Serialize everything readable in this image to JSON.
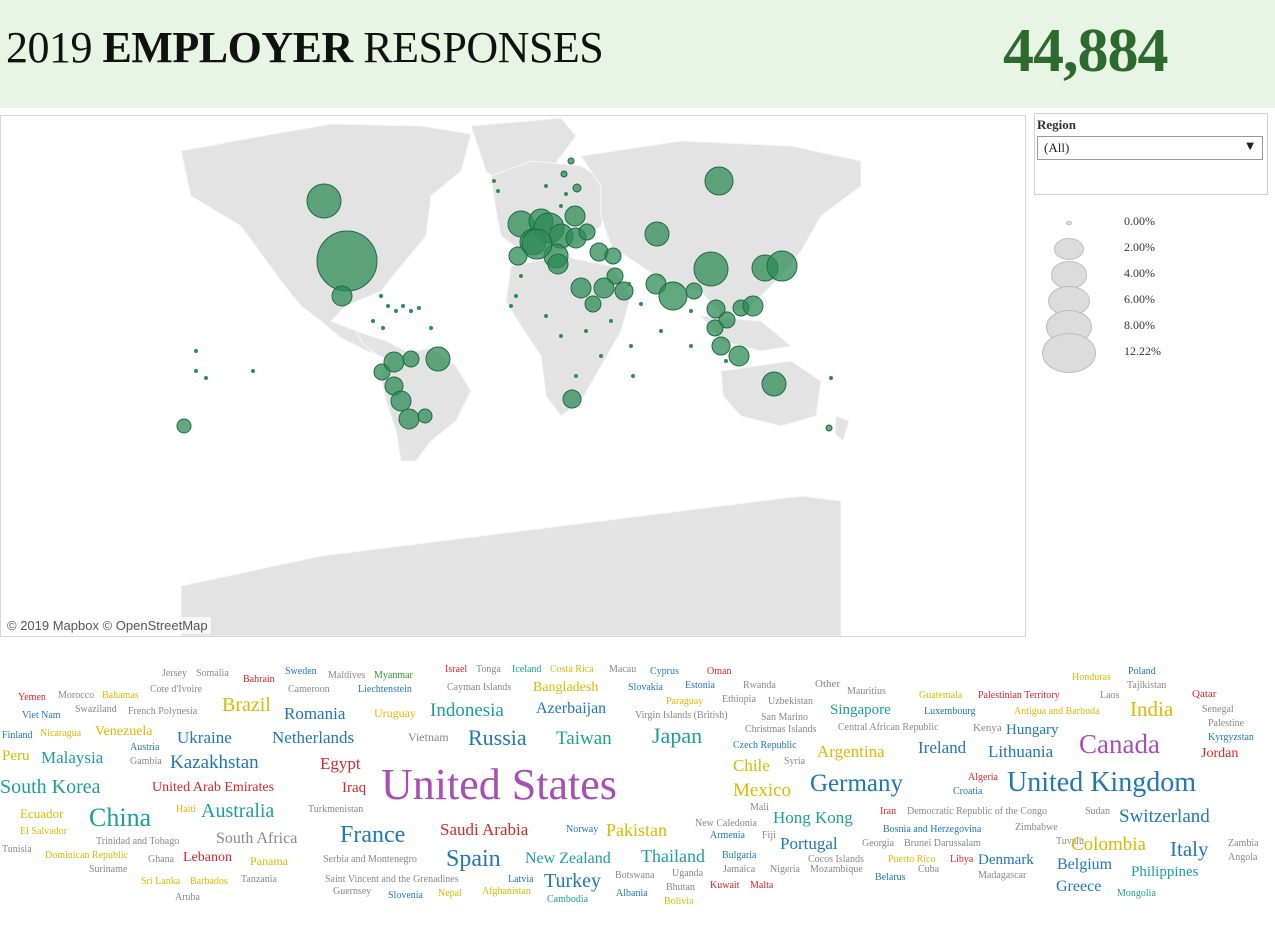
{
  "header": {
    "title_year": "2019",
    "title_bold": "EMPLOYER",
    "title_rest": "RESPONSES",
    "total_responses": "44,884"
  },
  "map": {
    "attribution": "© 2019 Mapbox © OpenStreetMap",
    "marker_color": "#2e8b57",
    "land_color": "#e2e2e2",
    "water_color": "#ffffff"
  },
  "region_filter": {
    "label": "Region",
    "selected": "(All)",
    "arrow_icon": "chevron-down-icon"
  },
  "size_legend": {
    "items": [
      {
        "label": "0.00%",
        "share": 0.0
      },
      {
        "label": "2.00%",
        "share": 2.0
      },
      {
        "label": "4.00%",
        "share": 4.0
      },
      {
        "label": "6.00%",
        "share": 6.0
      },
      {
        "label": "8.00%",
        "share": 8.0
      },
      {
        "label": "12.22%",
        "share": 12.22
      }
    ]
  },
  "colors": {
    "teal": "#1b9e9e",
    "blue": "#1f77b4",
    "green": "#2ca02c",
    "purple": "#a84fb5",
    "red": "#d62728",
    "gold": "#e0b800",
    "gray": "#888888",
    "darkteal": "#0f8a7a"
  },
  "word_cloud": [
    {
      "t": "Jersey",
      "c": "gray"
    },
    {
      "t": "Somalia",
      "c": "gray"
    },
    {
      "t": "Bahrain",
      "c": "red"
    },
    {
      "t": "Sweden",
      "c": "blue"
    },
    {
      "t": "Maldives",
      "c": "gray"
    },
    {
      "t": "Myanmar",
      "c": "green"
    },
    {
      "t": "Israel",
      "c": "red"
    },
    {
      "t": "Tonga",
      "c": "gray"
    },
    {
      "t": "Iceland",
      "c": "teal"
    },
    {
      "t": "Costa Rica",
      "c": "gold"
    },
    {
      "t": "Macau",
      "c": "gray"
    },
    {
      "t": "Cyprus",
      "c": "blue"
    },
    {
      "t": "Oman",
      "c": "red"
    },
    {
      "t": "Honduras",
      "c": "gold"
    },
    {
      "t": "Poland",
      "c": "blue"
    },
    {
      "t": "Tajikistan",
      "c": "gray"
    },
    {
      "t": "Yemen",
      "c": "red"
    },
    {
      "t": "Morocco",
      "c": "gray"
    },
    {
      "t": "Bahamas",
      "c": "gold"
    },
    {
      "t": "Cote d'Ivoire",
      "c": "gray"
    },
    {
      "t": "Cameroon",
      "c": "gray"
    },
    {
      "t": "Liechtenstein",
      "c": "blue"
    },
    {
      "t": "Cayman Islands",
      "c": "gray"
    },
    {
      "t": "Bangladesh",
      "c": "gold"
    },
    {
      "t": "Slovakia",
      "c": "blue"
    },
    {
      "t": "Estonia",
      "c": "blue"
    },
    {
      "t": "Rwanda",
      "c": "gray"
    },
    {
      "t": "Other",
      "c": "gray"
    },
    {
      "t": "Mauritius",
      "c": "gray"
    },
    {
      "t": "Guatemala",
      "c": "gold"
    },
    {
      "t": "Palestinian Territory",
      "c": "red"
    },
    {
      "t": "Laos",
      "c": "gray"
    },
    {
      "t": "Qatar",
      "c": "red"
    },
    {
      "t": "Viet Nam",
      "c": "blue"
    },
    {
      "t": "Swaziland",
      "c": "gray"
    },
    {
      "t": "French Polynesia",
      "c": "gray"
    },
    {
      "t": "Brazil",
      "c": "gold"
    },
    {
      "t": "Romania",
      "c": "blue"
    },
    {
      "t": "Uruguay",
      "c": "gold"
    },
    {
      "t": "Indonesia",
      "c": "teal"
    },
    {
      "t": "Azerbaijan",
      "c": "blue"
    },
    {
      "t": "Paraguay",
      "c": "gold"
    },
    {
      "t": "Ethiopia",
      "c": "gray"
    },
    {
      "t": "Uzbekistan",
      "c": "gray"
    },
    {
      "t": "Virgin Islands (British)",
      "c": "gray"
    },
    {
      "t": "San Marino",
      "c": "gray"
    },
    {
      "t": "Singapore",
      "c": "teal"
    },
    {
      "t": "Luxembourg",
      "c": "blue"
    },
    {
      "t": "Antigua and Barbuda",
      "c": "gold"
    },
    {
      "t": "India",
      "c": "gold"
    },
    {
      "t": "Senegal",
      "c": "gray"
    },
    {
      "t": "Finland",
      "c": "blue"
    },
    {
      "t": "Nicaragua",
      "c": "gold"
    },
    {
      "t": "Venezuela",
      "c": "gold"
    },
    {
      "t": "Austria",
      "c": "blue"
    },
    {
      "t": "Ukraine",
      "c": "blue"
    },
    {
      "t": "Netherlands",
      "c": "blue"
    },
    {
      "t": "Vietnam",
      "c": "gray"
    },
    {
      "t": "Russia",
      "c": "blue"
    },
    {
      "t": "Taiwan",
      "c": "teal"
    },
    {
      "t": "Japan",
      "c": "teal"
    },
    {
      "t": "Christmas Islands",
      "c": "gray"
    },
    {
      "t": "Central African Republic",
      "c": "gray"
    },
    {
      "t": "Kenya",
      "c": "gray"
    },
    {
      "t": "Hungary",
      "c": "blue"
    },
    {
      "t": "Palestine",
      "c": "gray"
    },
    {
      "t": "Kyrgyzstan",
      "c": "blue"
    },
    {
      "t": "Peru",
      "c": "gold"
    },
    {
      "t": "Malaysia",
      "c": "teal"
    },
    {
      "t": "Gambia",
      "c": "gray"
    },
    {
      "t": "Kazakhstan",
      "c": "blue"
    },
    {
      "t": "Egypt",
      "c": "red"
    },
    {
      "t": "Czech Republic",
      "c": "blue"
    },
    {
      "t": "Argentina",
      "c": "gold"
    },
    {
      "t": "Ireland",
      "c": "blue"
    },
    {
      "t": "Lithuania",
      "c": "blue"
    },
    {
      "t": "Canada",
      "c": "purple"
    },
    {
      "t": "Jordan",
      "c": "red"
    },
    {
      "t": "Chile",
      "c": "gold"
    },
    {
      "t": "Syria",
      "c": "gray"
    },
    {
      "t": "South Korea",
      "c": "teal"
    },
    {
      "t": "United Arab Emirates",
      "c": "red"
    },
    {
      "t": "Iraq",
      "c": "red"
    },
    {
      "t": "United States",
      "c": "purple"
    },
    {
      "t": "Mexico",
      "c": "gold"
    },
    {
      "t": "Germany",
      "c": "blue"
    },
    {
      "t": "Algeria",
      "c": "red"
    },
    {
      "t": "Croatia",
      "c": "blue"
    },
    {
      "t": "United Kingdom",
      "c": "blue"
    },
    {
      "t": "Ecuador",
      "c": "gold"
    },
    {
      "t": "Haiti",
      "c": "gold"
    },
    {
      "t": "China",
      "c": "teal"
    },
    {
      "t": "Australia",
      "c": "teal"
    },
    {
      "t": "Turkmenistan",
      "c": "gray"
    },
    {
      "t": "Mali",
      "c": "gray"
    },
    {
      "t": "Hong Kong",
      "c": "teal"
    },
    {
      "t": "Iran",
      "c": "red"
    },
    {
      "t": "Democratic Republic of the Congo",
      "c": "gray"
    },
    {
      "t": "Sudan",
      "c": "gray"
    },
    {
      "t": "Switzerland",
      "c": "blue"
    },
    {
      "t": "El Salvador",
      "c": "gold"
    },
    {
      "t": "Trinidad and Tobago",
      "c": "gray"
    },
    {
      "t": "South Africa",
      "c": "gray"
    },
    {
      "t": "France",
      "c": "blue"
    },
    {
      "t": "Saudi Arabia",
      "c": "red"
    },
    {
      "t": "Norway",
      "c": "blue"
    },
    {
      "t": "Pakistan",
      "c": "gold"
    },
    {
      "t": "New Caledonia",
      "c": "gray"
    },
    {
      "t": "Armenia",
      "c": "blue"
    },
    {
      "t": "Fiji",
      "c": "gray"
    },
    {
      "t": "Portugal",
      "c": "blue"
    },
    {
      "t": "Bosnia and Herzegovina",
      "c": "blue"
    },
    {
      "t": "Zimbabwe",
      "c": "gray"
    },
    {
      "t": "Georgia",
      "c": "gray"
    },
    {
      "t": "Brunei Darussalam",
      "c": "gray"
    },
    {
      "t": "Tuvalu",
      "c": "gray"
    },
    {
      "t": "Colombia",
      "c": "gold"
    },
    {
      "t": "Italy",
      "c": "blue"
    },
    {
      "t": "Zambia",
      "c": "gray"
    },
    {
      "t": "Tunisia",
      "c": "gray"
    },
    {
      "t": "Dominican Republic",
      "c": "gold"
    },
    {
      "t": "Ghana",
      "c": "gray"
    },
    {
      "t": "Lebanon",
      "c": "red"
    },
    {
      "t": "Panama",
      "c": "gold"
    },
    {
      "t": "Serbia and Montenegro",
      "c": "gray"
    },
    {
      "t": "Spain",
      "c": "blue"
    },
    {
      "t": "New Zealand",
      "c": "teal"
    },
    {
      "t": "Thailand",
      "c": "teal"
    },
    {
      "t": "Bulgaria",
      "c": "blue"
    },
    {
      "t": "Cocos Islands",
      "c": "gray"
    },
    {
      "t": "Puerto Rico",
      "c": "gold"
    },
    {
      "t": "Libya",
      "c": "red"
    },
    {
      "t": "Denmark",
      "c": "blue"
    },
    {
      "t": "Belgium",
      "c": "blue"
    },
    {
      "t": "Angola",
      "c": "gray"
    },
    {
      "t": "Suriname",
      "c": "gray"
    },
    {
      "t": "Jamaica",
      "c": "gray"
    },
    {
      "t": "Nigeria",
      "c": "gray"
    },
    {
      "t": "Mozambique",
      "c": "gray"
    },
    {
      "t": "Cuba",
      "c": "gray"
    },
    {
      "t": "Madagascar",
      "c": "gray"
    },
    {
      "t": "Philippines",
      "c": "teal"
    },
    {
      "t": "Sri Lanka",
      "c": "gold"
    },
    {
      "t": "Barbados",
      "c": "gold"
    },
    {
      "t": "Tanzania",
      "c": "gray"
    },
    {
      "t": "Saint Vincent and the Grenadines",
      "c": "gray"
    },
    {
      "t": "Latvia",
      "c": "blue"
    },
    {
      "t": "Turkey",
      "c": "blue"
    },
    {
      "t": "Botswana",
      "c": "gray"
    },
    {
      "t": "Uganda",
      "c": "gray"
    },
    {
      "t": "Kuwait",
      "c": "red"
    },
    {
      "t": "Malta",
      "c": "red"
    },
    {
      "t": "Belarus",
      "c": "blue"
    },
    {
      "t": "Aruba",
      "c": "gray"
    },
    {
      "t": "Guernsey",
      "c": "gray"
    },
    {
      "t": "Slovenia",
      "c": "blue"
    },
    {
      "t": "Nepal",
      "c": "gold"
    },
    {
      "t": "Afghanistan",
      "c": "gold"
    },
    {
      "t": "Cambodia",
      "c": "teal"
    },
    {
      "t": "Albania",
      "c": "blue"
    },
    {
      "t": "Bhutan",
      "c": "gray"
    },
    {
      "t": "Bolivia",
      "c": "gold"
    },
    {
      "t": "Greece",
      "c": "blue"
    },
    {
      "t": "Mongolia",
      "c": "teal"
    }
  ]
}
